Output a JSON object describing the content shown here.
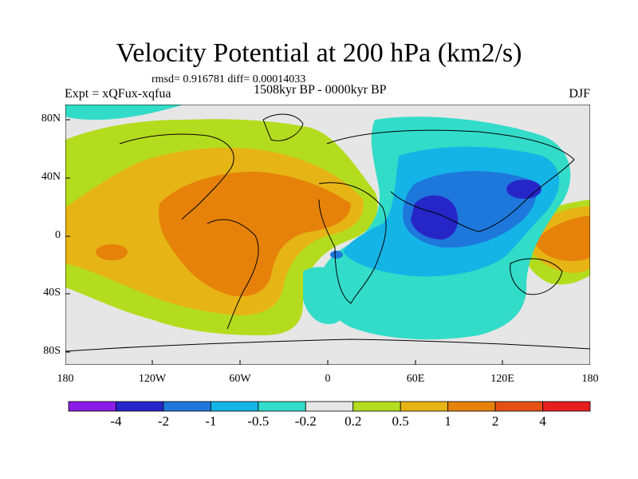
{
  "title": "Velocity Potential at 200 hPa (km2/s)",
  "stats": "rmsd= 0.916781 diff= 0.00014033",
  "experiment": "Expt = xQFux-xqfua",
  "period": "1508kyr BP - 0000kyr BP",
  "season": "DJF",
  "lat_labels": [
    "80N",
    "40N",
    "0",
    "40S",
    "80S"
  ],
  "lon_labels": [
    "180",
    "120W",
    "60W",
    "0",
    "60E",
    "120E",
    "180"
  ],
  "colorbar": {
    "labels": [
      "-4",
      "-2",
      "-1",
      "-0.5",
      "-0.2",
      "0.2",
      "0.5",
      "1",
      "2",
      "4"
    ],
    "colors": [
      "#8a1ee6",
      "#2626c8",
      "#1e78dc",
      "#14b4e6",
      "#32dcc8",
      "#e6e6e6",
      "#b4dc1e",
      "#e6b414",
      "#e6820a",
      "#e65014",
      "#e61e1e"
    ]
  },
  "field_colors": {
    "neutral": "#e6e6e6",
    "pos1": "#b4dc1e",
    "pos2": "#e6b414",
    "pos3": "#e6820a",
    "neg1": "#32dcc8",
    "neg2": "#14b4e6",
    "neg3": "#1e78dc",
    "neg4": "#2626c8",
    "neg5": "#8a1ee6"
  }
}
